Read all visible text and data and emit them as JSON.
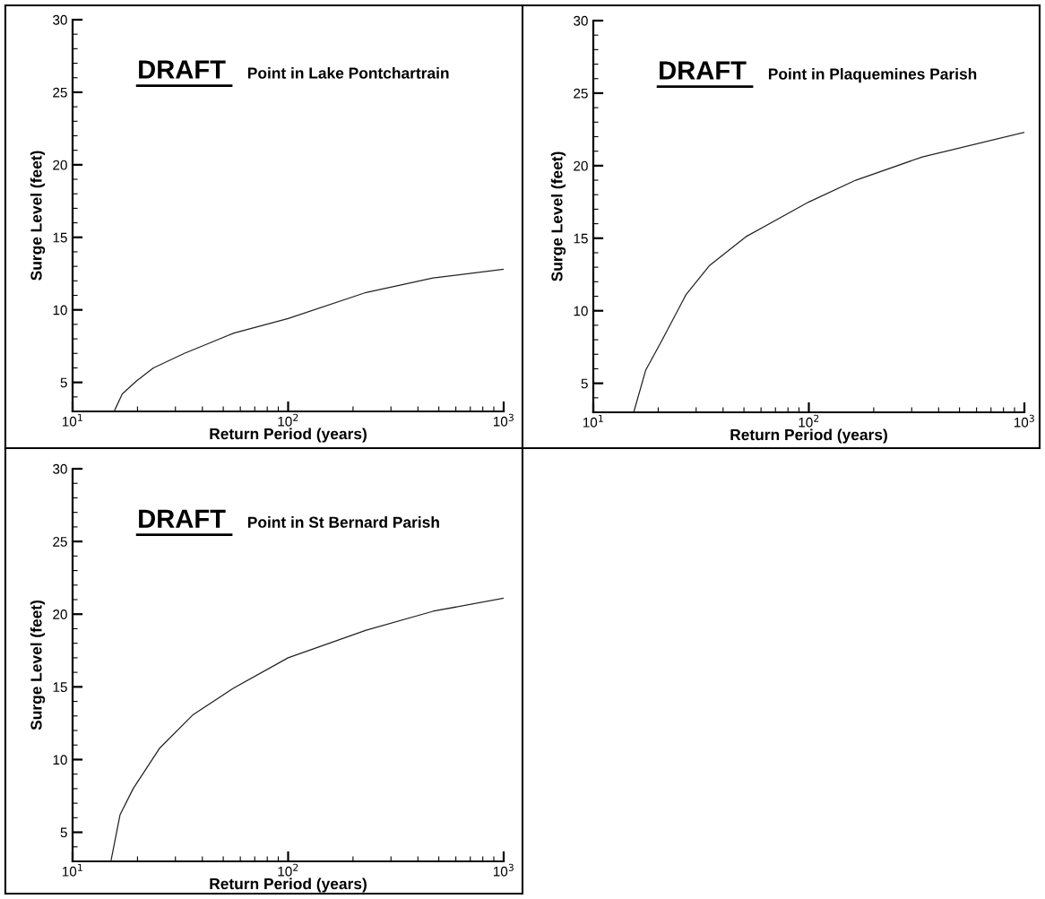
{
  "chart_data": [
    {
      "type": "line",
      "title": "DRAFT",
      "subtitle": "Point in Lake Pontchartrain",
      "xlabel": "Return Period (years)",
      "ylabel": "Surge Level (feet)",
      "log": "x",
      "xlim": [
        10,
        1000
      ],
      "xticks": [
        {
          "value": 10,
          "label": "10$^{1}$"
        },
        {
          "value": 100,
          "label": "10$^{2}$"
        },
        {
          "value": 1000,
          "label": "10$^{3}$"
        }
      ],
      "ylim": [
        3,
        30
      ],
      "yticks": [
        5,
        10,
        15,
        20,
        25,
        30
      ],
      "grid": false,
      "legend": false,
      "marker": "none",
      "line_style": "solid",
      "series": [
        {
          "color": "#222222",
          "x": [
            15.7,
            17,
            19.8,
            23.7,
            33,
            56,
            100,
            230,
            470,
            1000
          ],
          "values": [
            3.1,
            4.2,
            5.1,
            6.0,
            7.0,
            8.4,
            9.4,
            11.2,
            12.2,
            12.8
          ]
        }
      ]
    },
    {
      "type": "line",
      "title": "DRAFT",
      "subtitle": "Point in Plaquemines Parish",
      "xlabel": "Return Period (years)",
      "ylabel": "Surge Level (feet)",
      "log": "x",
      "xlim": [
        10,
        1000
      ],
      "xticks": [
        {
          "value": 10,
          "label": "10$^{1}$"
        },
        {
          "value": 100,
          "label": "10$^{2}$"
        },
        {
          "value": 1000,
          "label": "10$^{3}$"
        }
      ],
      "ylim": [
        3,
        30
      ],
      "yticks": [
        5,
        10,
        15,
        20,
        25,
        30
      ],
      "grid": false,
      "legend": false,
      "marker": "none",
      "line_style": "solid",
      "series": [
        {
          "color": "#222222",
          "x": [
            15.4,
            17.5,
            20.9,
            26.9,
            34.5,
            51,
            100,
            165,
            336,
            1000
          ],
          "values": [
            3.0,
            5.9,
            8.0,
            11.1,
            13.1,
            15.1,
            17.5,
            19.0,
            20.6,
            22.3
          ]
        }
      ]
    },
    {
      "type": "line",
      "title": "DRAFT",
      "subtitle": "Point in St Bernard Parish",
      "xlabel": "Return Period (years)",
      "ylabel": "Surge Level (feet)",
      "log": "x",
      "xlim": [
        10,
        1000
      ],
      "xticks": [
        {
          "value": 10,
          "label": "10$^{1}$"
        },
        {
          "value": 100,
          "label": "10$^{2}$"
        },
        {
          "value": 1000,
          "label": "10$^{3}$"
        }
      ],
      "ylim": [
        3,
        30
      ],
      "yticks": [
        5,
        10,
        15,
        20,
        25,
        30
      ],
      "grid": false,
      "legend": false,
      "marker": "none",
      "line_style": "solid",
      "series": [
        {
          "color": "#222222",
          "x": [
            15.1,
            16.6,
            19.1,
            25.4,
            36.3,
            55.6,
            100,
            230,
            470,
            1000
          ],
          "values": [
            3.1,
            6.2,
            8.0,
            10.8,
            13.1,
            14.9,
            17.0,
            18.9,
            20.2,
            21.1
          ]
        }
      ]
    }
  ]
}
